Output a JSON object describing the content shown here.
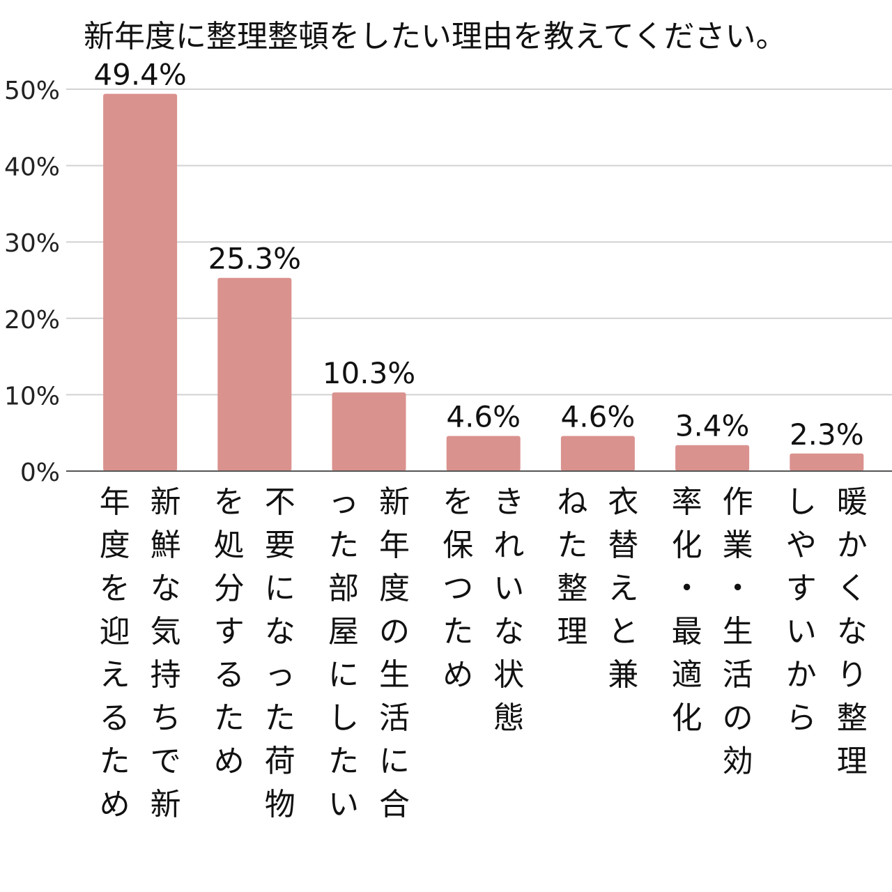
{
  "chart_data": {
    "type": "bar",
    "title": "新年度に整理整頓をしたい理由を教えてください。",
    "categories": [
      "新鮮な気持ちで新年度を迎えるため",
      "不要になった荷物を処分するため",
      "新年度の生活に合った部屋にしたい",
      "きれいな状態を保つため",
      "衣替えと兼ねた整理",
      "作業・生活の効率化・最適化",
      "暖かくなり整理しやすいから"
    ],
    "values": [
      49.4,
      25.3,
      10.3,
      4.6,
      4.6,
      3.4,
      2.3
    ],
    "data_labels": [
      "49.4%",
      "25.3%",
      "10.3%",
      "4.6%",
      "4.6%",
      "3.4%",
      "2.3%"
    ],
    "y_ticks": [
      "0%",
      "10%",
      "20%",
      "30%",
      "40%",
      "50%"
    ],
    "ylim": [
      0,
      50
    ],
    "grid": true,
    "legend": "none",
    "colors": {
      "bar": "#DA928E",
      "grid": "#d2d2d2",
      "axis": "#555555"
    }
  }
}
